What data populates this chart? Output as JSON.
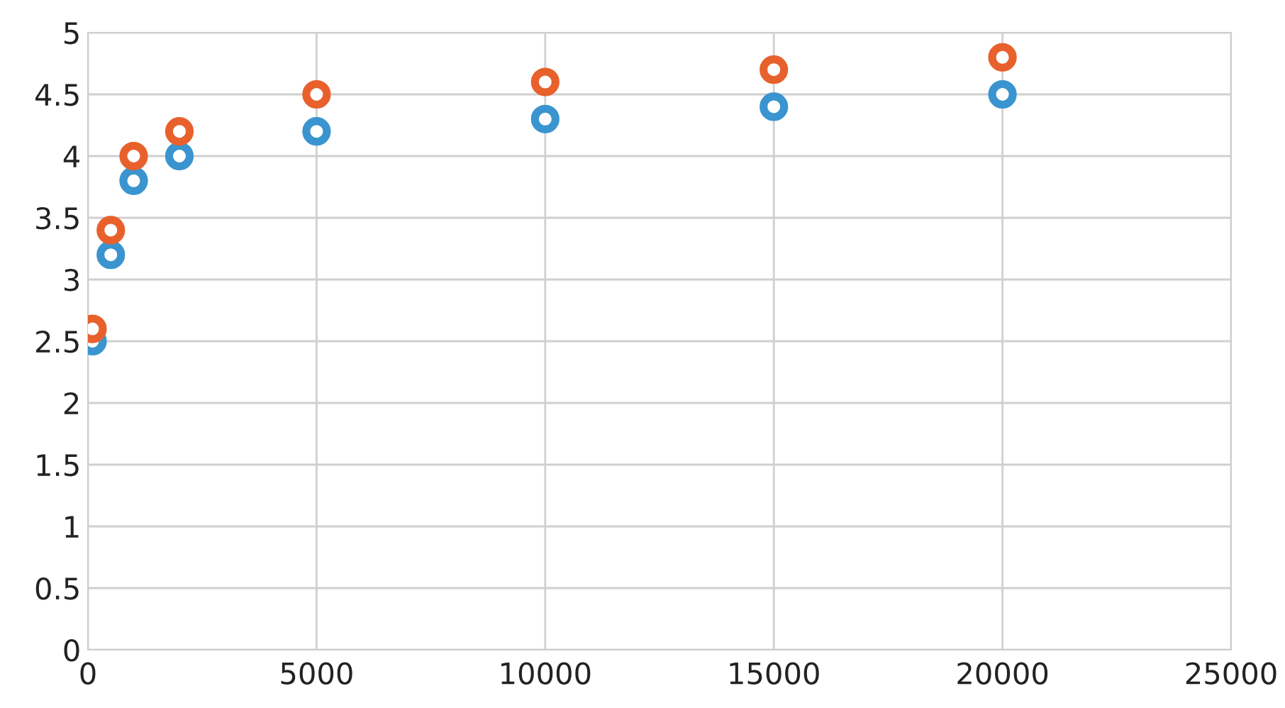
{
  "chart_data": {
    "type": "scatter",
    "x": [
      100,
      500,
      1000,
      2000,
      5000,
      10000,
      15000,
      20000
    ],
    "series": [
      {
        "color": "#3a94cf",
        "values": [
          2.5,
          3.2,
          3.8,
          4.0,
          4.2,
          4.3,
          4.4,
          4.5
        ]
      },
      {
        "color": "#e8612c",
        "values": [
          2.6,
          3.4,
          4.0,
          4.2,
          4.5,
          4.6,
          4.7,
          4.8
        ]
      }
    ],
    "xlim": [
      0,
      25000
    ],
    "xticks": [
      0,
      5000,
      10000,
      15000,
      20000,
      25000
    ],
    "ylim": [
      0,
      5
    ],
    "yticks": [
      0,
      0.5,
      1,
      1.5,
      2,
      2.5,
      3,
      3.5,
      4,
      4.5,
      5
    ],
    "grid": true,
    "marker": "circle"
  }
}
